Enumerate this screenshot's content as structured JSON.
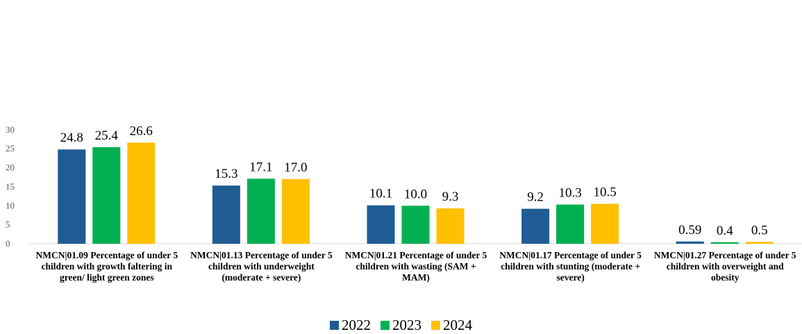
{
  "chart_data": {
    "type": "bar",
    "categories": [
      "NMCN|01.09 Percentage of under 5 children with growth faltering in green/ light green zones",
      "NMCN|01.13 Percentage of under 5 children with underweight (moderate + severe)",
      "NMCN|01.21 Percentage of under 5 children with wasting (SAM + MAM)",
      "NMCN|01.17 Percentage of under 5 children with stunting (moderate + severe)",
      "NMCN|01.27 Percentage of under 5 children with overweight and obesity"
    ],
    "series": [
      {
        "name": "2022",
        "color": "#1f5c94",
        "values": [
          24.8,
          15.3,
          10.1,
          9.2,
          0.59
        ],
        "labels": [
          "24.8",
          "15.3",
          "10.1",
          "9.2",
          "0.59"
        ]
      },
      {
        "name": "2023",
        "color": "#00b050",
        "values": [
          25.4,
          17.1,
          10.0,
          10.3,
          0.4
        ],
        "labels": [
          "25.4",
          "17.1",
          "10.0",
          "10.3",
          "0.4"
        ]
      },
      {
        "name": "2024",
        "color": "#ffc000",
        "values": [
          26.6,
          17.0,
          9.3,
          10.5,
          0.5
        ],
        "labels": [
          "26.6",
          "17.0",
          "9.3",
          "10.5",
          "0.5"
        ]
      }
    ],
    "yticks": [
      "0",
      "5",
      "10",
      "15",
      "20",
      "25",
      "30"
    ],
    "ylim": [
      0,
      30
    ],
    "title": "",
    "xlabel": "",
    "ylabel": "",
    "grid": false,
    "legend_position": "bottom"
  }
}
